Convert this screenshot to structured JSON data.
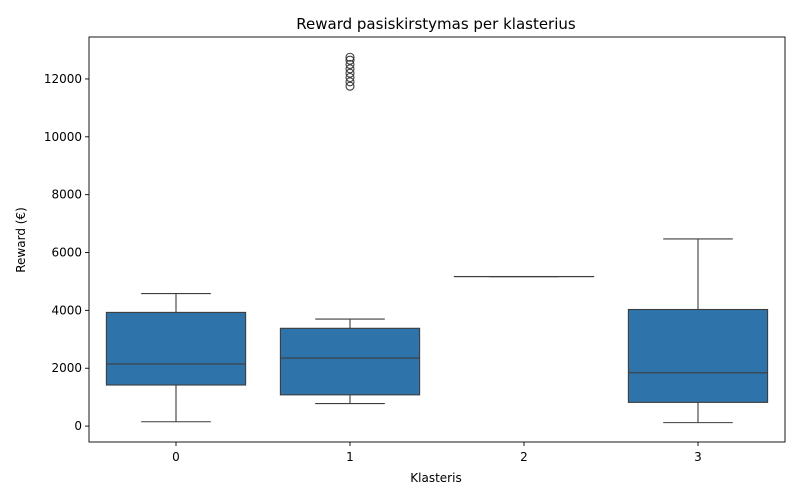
{
  "chart_data": {
    "type": "box",
    "title": "Reward pasiskirstymas per klasterius",
    "xlabel": "Klasteris",
    "ylabel": "Reward (€)",
    "categories": [
      "0",
      "1",
      "2",
      "3"
    ],
    "ylim": [
      -550,
      13450
    ],
    "yticks": [
      0,
      2000,
      4000,
      6000,
      8000,
      10000,
      12000
    ],
    "ytick_labels": [
      "0",
      "2000",
      "4000",
      "6000",
      "8000",
      "10000",
      "12000"
    ],
    "grid": false,
    "box_color": "#2e74ab",
    "line_color": "#3d3d3d",
    "boxes": [
      {
        "category": "0",
        "whisker_low": 150,
        "q1": 1420,
        "median": 2150,
        "q3": 3930,
        "whisker_high": 4580,
        "outliers": []
      },
      {
        "category": "1",
        "whisker_low": 780,
        "q1": 1080,
        "median": 2350,
        "q3": 3380,
        "whisker_high": 3700,
        "outliers": [
          11750,
          11900,
          12050,
          12200,
          12350,
          12500,
          12650,
          12750
        ]
      },
      {
        "category": "2",
        "whisker_low": 5170,
        "q1": 5170,
        "median": 5170,
        "q3": 5170,
        "whisker_high": 5170,
        "outliers": []
      },
      {
        "category": "3",
        "whisker_low": 120,
        "q1": 820,
        "median": 1840,
        "q3": 4030,
        "whisker_high": 6470,
        "outliers": []
      }
    ]
  }
}
